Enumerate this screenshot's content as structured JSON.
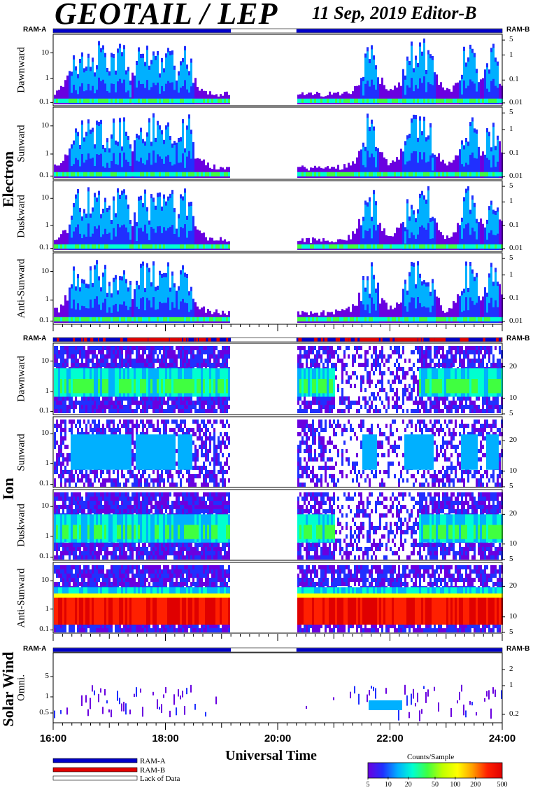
{
  "header": {
    "title": "GEOTAIL / LEP",
    "date_editor": "11 Sep, 2019   Editor-B"
  },
  "colors": {
    "ram_a": "#0000c8",
    "ram_b": "#e00000",
    "lack": "#ffffff",
    "colorscale": [
      "#6a00e0",
      "#2030ff",
      "#00b0ff",
      "#00ffd0",
      "#40ff40",
      "#c0ff00",
      "#ffff00",
      "#ffa000",
      "#ff2000",
      "#e00000"
    ]
  },
  "x_axis": {
    "title": "Universal Time",
    "ticks": [
      "16:00",
      "18:00",
      "20:00",
      "22:00",
      "24:00"
    ]
  },
  "legend": {
    "ram_a": "RAM-A",
    "ram_b": "RAM-B",
    "lack": "Lack of Data"
  },
  "colorbar": {
    "title": "Counts/Sample",
    "ticks": [
      "5",
      "10",
      "20",
      "50",
      "100",
      "200",
      "500"
    ],
    "range": [
      5,
      500
    ],
    "log": true
  },
  "groups": {
    "electron": "Electron",
    "ion": "Ion",
    "solar_wind": "Solar Wind"
  },
  "ram_labels": {
    "a": "RAM-A",
    "b": "RAM-B"
  },
  "chart_data": {
    "type": "heatmap",
    "title": "GEOTAIL / LEP",
    "xlabel": "Universal Time",
    "x_range": [
      "16:00",
      "24:00"
    ],
    "data_gap": [
      "19:10",
      "20:20"
    ],
    "ram_status": {
      "electron": [
        {
          "from": "16:00",
          "to": "19:10",
          "mode": "RAM-A"
        },
        {
          "from": "19:10",
          "to": "20:20",
          "mode": "Lack of Data"
        },
        {
          "from": "20:20",
          "to": "24:00",
          "mode": "RAM-A"
        }
      ],
      "ion": [
        {
          "from": "16:00",
          "to": "19:10",
          "mode": "RAM-A/RAM-B mixed"
        },
        {
          "from": "19:10",
          "to": "20:20",
          "mode": "Lack of Data"
        },
        {
          "from": "20:20",
          "to": "24:00",
          "mode": "RAM-A/RAM-B mixed"
        }
      ],
      "solar_wind": [
        {
          "from": "16:00",
          "to": "19:10",
          "mode": "RAM-A"
        },
        {
          "from": "19:10",
          "to": "20:20",
          "mode": "Lack of Data"
        },
        {
          "from": "20:20",
          "to": "24:00",
          "mode": "RAM-A"
        }
      ]
    },
    "panels": [
      {
        "group": "Electron",
        "name": "Dawnward",
        "y_ticks": [
          "10",
          "1",
          "0.1"
        ],
        "right_ticks": [
          "5",
          "1",
          "0.1",
          "0.01"
        ]
      },
      {
        "group": "Electron",
        "name": "Sunward",
        "y_ticks": [
          "10",
          "1",
          "0.1"
        ],
        "right_ticks": [
          "5",
          "1",
          "0.1",
          "0.01"
        ]
      },
      {
        "group": "Electron",
        "name": "Duskward",
        "y_ticks": [
          "10",
          "1",
          "0.1"
        ],
        "right_ticks": [
          "5",
          "1",
          "0.1",
          "0.01"
        ]
      },
      {
        "group": "Electron",
        "name": "Anti-Sunward",
        "y_ticks": [
          "10",
          "1",
          "0.1"
        ],
        "right_ticks": [
          "5",
          "1",
          "0.1",
          "0.01"
        ]
      },
      {
        "group": "Ion",
        "name": "Dawnward",
        "y_ticks": [
          "10",
          "1",
          "0.1"
        ],
        "right_ticks": [
          "20",
          "10",
          "5"
        ]
      },
      {
        "group": "Ion",
        "name": "Sunward",
        "y_ticks": [
          "10",
          "1",
          "0.1"
        ],
        "right_ticks": [
          "20",
          "10",
          "5"
        ]
      },
      {
        "group": "Ion",
        "name": "Duskward",
        "y_ticks": [
          "10",
          "1",
          "0.1"
        ],
        "right_ticks": [
          "20",
          "10",
          "5"
        ]
      },
      {
        "group": "Ion",
        "name": "Anti-Sunward",
        "y_ticks": [
          "10",
          "1",
          "0.1"
        ],
        "right_ticks": [
          "20",
          "10",
          "5"
        ]
      },
      {
        "group": "Solar Wind",
        "name": "Omni.",
        "y_ticks": [
          "5",
          "1",
          "0.5"
        ],
        "right_ticks": [
          "2",
          "1",
          "0.2"
        ]
      }
    ]
  }
}
